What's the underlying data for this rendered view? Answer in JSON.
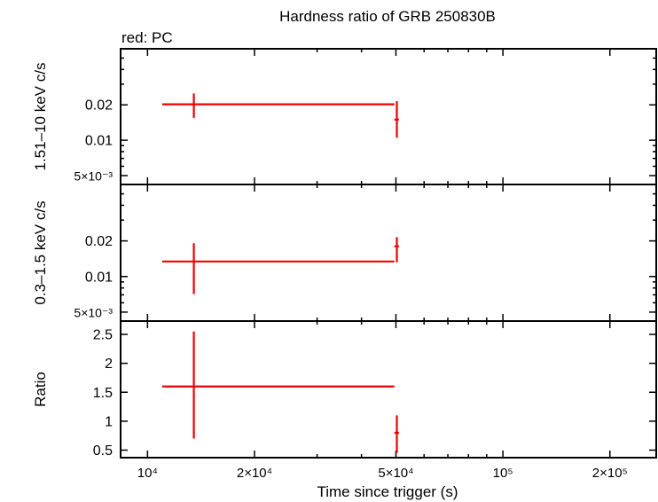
{
  "chart_data": {
    "type": "scatter",
    "title": "Hardness ratio of GRB 250830B",
    "legend": "red: PC",
    "xlabel": "Time since trigger (s)",
    "x_scale": "log",
    "xlim": [
      8400,
      270000
    ],
    "x_ticks": [
      {
        "value": 10000,
        "label": "10⁴"
      },
      {
        "value": 20000,
        "label": "2×10⁴"
      },
      {
        "value": 50000,
        "label": "5×10⁴"
      },
      {
        "value": 100000,
        "label": "10⁵"
      },
      {
        "value": 200000,
        "label": "2×10⁵"
      }
    ],
    "x_minor": [
      30000,
      40000,
      60000,
      70000,
      80000,
      90000,
      300000
    ],
    "color": "#ee0000",
    "panels": [
      {
        "id": "hard",
        "ylabel": "1.51–10 keV c/s",
        "y_scale": "log",
        "ylim": [
          0.0042,
          0.06
        ],
        "y_ticks": [
          {
            "value": 0.005,
            "label": "5×10⁻³"
          },
          {
            "value": 0.01,
            "label": "0.01"
          },
          {
            "value": 0.02,
            "label": "0.02"
          }
        ],
        "points": [
          {
            "x": 13500,
            "xlo": 11000,
            "xhi": 49500,
            "y": 0.0202,
            "ylo": 0.0155,
            "yhi": 0.025
          },
          {
            "x": 50300,
            "xlo": 49500,
            "xhi": 51000,
            "y": 0.015,
            "ylo": 0.0105,
            "yhi": 0.0215
          }
        ]
      },
      {
        "id": "soft",
        "ylabel": "0.3–1.5 keV c/s",
        "y_scale": "log",
        "ylim": [
          0.0042,
          0.06
        ],
        "y_ticks": [
          {
            "value": 0.005,
            "label": "5×10⁻³"
          },
          {
            "value": 0.01,
            "label": "0.01"
          },
          {
            "value": 0.02,
            "label": "0.02"
          }
        ],
        "points": [
          {
            "x": 13500,
            "xlo": 11000,
            "xhi": 49500,
            "y": 0.0134,
            "ylo": 0.0071,
            "yhi": 0.0191
          },
          {
            "x": 50300,
            "xlo": 49500,
            "xhi": 51000,
            "y": 0.018,
            "ylo": 0.0132,
            "yhi": 0.0215
          }
        ]
      },
      {
        "id": "ratio",
        "ylabel": "Ratio",
        "y_scale": "linear",
        "ylim": [
          0.37,
          2.73
        ],
        "y_ticks": [
          {
            "value": 0.5,
            "label": "0.5"
          },
          {
            "value": 1,
            "label": "1"
          },
          {
            "value": 1.5,
            "label": "1.5"
          },
          {
            "value": 2,
            "label": "2"
          },
          {
            "value": 2.5,
            "label": "2.5"
          }
        ],
        "points": [
          {
            "x": 13500,
            "xlo": 11000,
            "xhi": 49500,
            "y": 1.6,
            "ylo": 0.7,
            "yhi": 2.55
          },
          {
            "x": 50300,
            "xlo": 49500,
            "xhi": 51000,
            "y": 0.8,
            "ylo": 0.45,
            "yhi": 1.1
          }
        ]
      }
    ]
  }
}
